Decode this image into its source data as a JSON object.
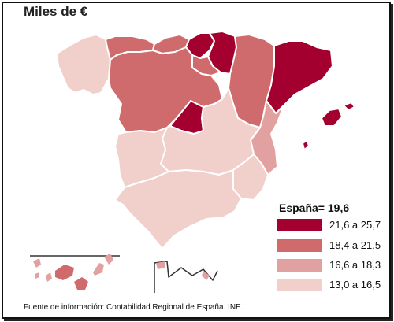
{
  "title": "Miles de €",
  "legend": {
    "title": "España= 19,6",
    "classes": [
      {
        "label": "21,6 a 25,7",
        "color": "#a3002f"
      },
      {
        "label": "18,4 a 21,5",
        "color": "#cf6b6c"
      },
      {
        "label": "16,6 a 18,3",
        "color": "#e1a1a0"
      },
      {
        "label": "13,0 a 16,5",
        "color": "#f1cfcb"
      }
    ]
  },
  "source": "Fuente de información: Contabilidad Regional de España. INE."
}
